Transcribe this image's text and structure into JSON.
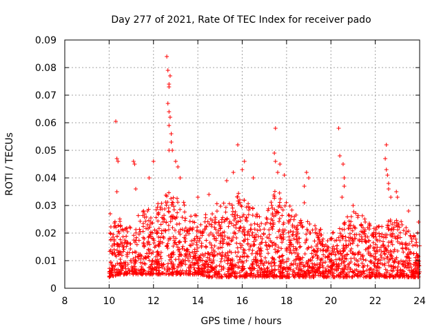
{
  "chart_data": {
    "type": "scatter",
    "title": "Day 277 of 2021, Rate Of TEC Index for receiver pado",
    "xlabel": "GPS time / hours",
    "ylabel": "ROTI / TECUs",
    "xlim": [
      8,
      24
    ],
    "ylim": [
      0,
      0.09
    ],
    "xticks": [
      "8",
      "10",
      "12",
      "14",
      "16",
      "18",
      "20",
      "22",
      "24"
    ],
    "yticks": [
      "0",
      "0.01",
      "0.02",
      "0.03",
      "0.04",
      "0.05",
      "0.06",
      "0.07",
      "0.08",
      "0.09"
    ],
    "grid": true,
    "marker": "+",
    "series_color": "#ff0000",
    "time_range": [
      10.0,
      24.0
    ],
    "envelope": {
      "hours": [
        10.0,
        10.5,
        11.0,
        11.5,
        12.0,
        12.5,
        13.0,
        13.5,
        14.0,
        14.5,
        15.0,
        15.5,
        16.0,
        16.5,
        17.0,
        17.5,
        18.0,
        18.5,
        19.0,
        19.5,
        20.0,
        20.5,
        21.0,
        21.5,
        22.0,
        22.5,
        23.0,
        23.5,
        24.0
      ],
      "typical_max": [
        0.022,
        0.026,
        0.024,
        0.028,
        0.03,
        0.034,
        0.036,
        0.03,
        0.026,
        0.028,
        0.032,
        0.034,
        0.036,
        0.03,
        0.026,
        0.036,
        0.032,
        0.026,
        0.024,
        0.022,
        0.02,
        0.024,
        0.028,
        0.026,
        0.022,
        0.024,
        0.026,
        0.022,
        0.02
      ],
      "floor": [
        0.004,
        0.005,
        0.005,
        0.005,
        0.005,
        0.005,
        0.005,
        0.005,
        0.005,
        0.004,
        0.004,
        0.004,
        0.004,
        0.004,
        0.004,
        0.004,
        0.004,
        0.004,
        0.004,
        0.004,
        0.004,
        0.004,
        0.004,
        0.004,
        0.004,
        0.004,
        0.004,
        0.004,
        0.004
      ]
    },
    "points": [
      {
        "x": 10.05,
        "y": 0.027
      },
      {
        "x": 10.3,
        "y": 0.0605
      },
      {
        "x": 10.35,
        "y": 0.047
      },
      {
        "x": 10.4,
        "y": 0.046
      },
      {
        "x": 10.35,
        "y": 0.035
      },
      {
        "x": 11.1,
        "y": 0.046
      },
      {
        "x": 11.15,
        "y": 0.045
      },
      {
        "x": 11.2,
        "y": 0.036
      },
      {
        "x": 11.8,
        "y": 0.04
      },
      {
        "x": 12.0,
        "y": 0.046
      },
      {
        "x": 12.6,
        "y": 0.084
      },
      {
        "x": 12.65,
        "y": 0.079
      },
      {
        "x": 12.7,
        "y": 0.074
      },
      {
        "x": 12.7,
        "y": 0.073
      },
      {
        "x": 12.75,
        "y": 0.077
      },
      {
        "x": 12.65,
        "y": 0.067
      },
      {
        "x": 12.7,
        "y": 0.064
      },
      {
        "x": 12.75,
        "y": 0.062
      },
      {
        "x": 12.7,
        "y": 0.059
      },
      {
        "x": 12.8,
        "y": 0.056
      },
      {
        "x": 12.8,
        "y": 0.053
      },
      {
        "x": 12.7,
        "y": 0.05
      },
      {
        "x": 12.85,
        "y": 0.05
      },
      {
        "x": 13.0,
        "y": 0.046
      },
      {
        "x": 13.1,
        "y": 0.044
      },
      {
        "x": 13.2,
        "y": 0.04
      },
      {
        "x": 14.0,
        "y": 0.033
      },
      {
        "x": 14.5,
        "y": 0.034
      },
      {
        "x": 15.3,
        "y": 0.039
      },
      {
        "x": 15.6,
        "y": 0.042
      },
      {
        "x": 15.8,
        "y": 0.052
      },
      {
        "x": 16.0,
        "y": 0.043
      },
      {
        "x": 16.1,
        "y": 0.046
      },
      {
        "x": 16.5,
        "y": 0.04
      },
      {
        "x": 17.5,
        "y": 0.058
      },
      {
        "x": 17.45,
        "y": 0.049
      },
      {
        "x": 17.5,
        "y": 0.046
      },
      {
        "x": 17.7,
        "y": 0.045
      },
      {
        "x": 17.6,
        "y": 0.042
      },
      {
        "x": 17.9,
        "y": 0.041
      },
      {
        "x": 18.8,
        "y": 0.037
      },
      {
        "x": 18.9,
        "y": 0.042
      },
      {
        "x": 19.0,
        "y": 0.04
      },
      {
        "x": 18.8,
        "y": 0.031
      },
      {
        "x": 20.35,
        "y": 0.058
      },
      {
        "x": 20.4,
        "y": 0.048
      },
      {
        "x": 20.55,
        "y": 0.045
      },
      {
        "x": 20.6,
        "y": 0.04
      },
      {
        "x": 20.6,
        "y": 0.037
      },
      {
        "x": 20.5,
        "y": 0.033
      },
      {
        "x": 21.0,
        "y": 0.03
      },
      {
        "x": 22.5,
        "y": 0.052
      },
      {
        "x": 22.45,
        "y": 0.047
      },
      {
        "x": 22.5,
        "y": 0.043
      },
      {
        "x": 22.55,
        "y": 0.041
      },
      {
        "x": 22.6,
        "y": 0.038
      },
      {
        "x": 22.6,
        "y": 0.036
      },
      {
        "x": 22.7,
        "y": 0.033
      },
      {
        "x": 22.95,
        "y": 0.035
      },
      {
        "x": 23.0,
        "y": 0.033
      },
      {
        "x": 23.5,
        "y": 0.028
      },
      {
        "x": 23.95,
        "y": 0.024
      }
    ]
  }
}
